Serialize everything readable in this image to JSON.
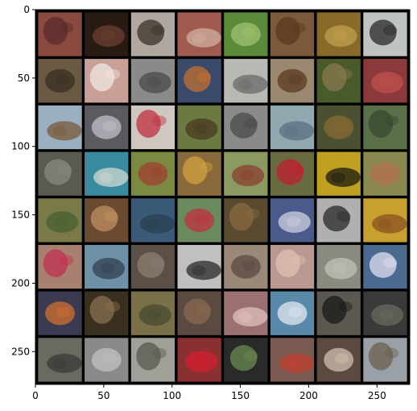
{
  "image": {
    "grid": {
      "rows": 8,
      "cols": 8,
      "gap_color": "#000000",
      "background": "#000000"
    },
    "axis": {
      "xlim": [
        0,
        274
      ],
      "ylim": [
        274,
        0
      ],
      "x_ticks": [
        0,
        50,
        100,
        150,
        200,
        250
      ],
      "y_ticks": [
        0,
        50,
        100,
        150,
        200,
        250
      ],
      "x_tick_labels": [
        "0",
        "50",
        "100",
        "150",
        "200",
        "250"
      ],
      "y_tick_labels": [
        "0",
        "50",
        "100",
        "150",
        "200",
        "250"
      ]
    },
    "tiles": [
      [
        "#8a4a40",
        "#2a1a14",
        "#b0a8a0",
        "#a05a50",
        "#5a8a3a",
        "#7a5a3a",
        "#8a6a2a",
        "#c0c4c0"
      ],
      [
        "#6a5a44",
        "#c8a098",
        "#8a8a88",
        "#3a4a6a",
        "#b8b8b4",
        "#9a8870",
        "#4a5a2a",
        "#8a3a3a"
      ],
      [
        "#9ab0c0",
        "#5a5a60",
        "#d0c8c0",
        "#6a7a40",
        "#8a8a88",
        "#90a8b0",
        "#4a5030",
        "#5a7048"
      ],
      [
        "#5a5a50",
        "#3a8aa0",
        "#7a8a40",
        "#8a6a3a",
        "#8a9a60",
        "#6a6a40",
        "#c0a020",
        "#8a8a50"
      ],
      [
        "#7a7a48",
        "#6a4a30",
        "#3a5a78",
        "#6a8a60",
        "#5a4a30",
        "#4a5a8a",
        "#b0b0b0",
        "#c8a030"
      ],
      [
        "#a88070",
        "#7090a8",
        "#5a5048",
        "#c0c0c0",
        "#9a8878",
        "#b89890",
        "#8a8a80",
        "#4a6a90"
      ],
      [
        "#3a3a50",
        "#3a3020",
        "#7a7048",
        "#5a4a40",
        "#9a7070",
        "#5a88a8",
        "#5a5850",
        "#3a3a38"
      ],
      [
        "#6a6a60",
        "#8a8a88",
        "#a0a098",
        "#8a3030",
        "#2a2a28",
        "#7a5a50",
        "#5a4a40",
        "#9aa0a8"
      ]
    ],
    "tile_accents": [
      [
        "#5a2a28",
        "#6a4030",
        "#3a3028",
        "#d0b0a0",
        "#a0c070",
        "#5a3a20",
        "#c0a050",
        "#2a2a28"
      ],
      [
        "#3a3020",
        "#f0e8e0",
        "#4a4a48",
        "#c07030",
        "#6a6a68",
        "#5a3a20",
        "#8a7a50",
        "#c05050"
      ],
      [
        "#7a5a3a",
        "#c0c0c8",
        "#c03040",
        "#4a3a20",
        "#4a4a48",
        "#5a7080",
        "#8a6a30",
        "#3a4a30"
      ],
      [
        "#8a8a80",
        "#d0d8d0",
        "#a04030",
        "#d0a040",
        "#8a4030",
        "#c02030",
        "#1a1a10",
        "#b07050"
      ],
      [
        "#4a6030",
        "#c09060",
        "#2a4050",
        "#c03040",
        "#8a6a40",
        "#d0d0e0",
        "#2a2a2a",
        "#8a5020"
      ],
      [
        "#c03050",
        "#304050",
        "#8a8070",
        "#2a2a2a",
        "#5a4a40",
        "#e0c0b0",
        "#c0c0b8",
        "#e0e0f0"
      ],
      [
        "#d07030",
        "#8a7050",
        "#4a4a30",
        "#8a6a50",
        "#e0c0c0",
        "#e0e8f0",
        "#1a1a18",
        "#6a6a60"
      ],
      [
        "#3a3a38",
        "#c0c0c0",
        "#5a5850",
        "#d02030",
        "#6a8a50",
        "#c04030",
        "#d0c0b0",
        "#6a6050"
      ]
    ]
  }
}
